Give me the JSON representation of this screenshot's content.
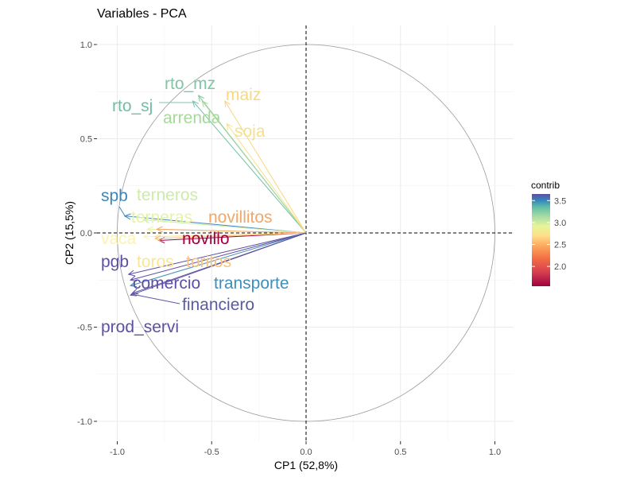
{
  "chart_data": {
    "type": "scatter",
    "subtype": "pca-variable-correlation-circle",
    "title": "Variables - PCA",
    "xlabel": "CP1 (52,8%)",
    "ylabel": "CP2 (15,5%)",
    "xlim": [
      -1.1,
      1.1
    ],
    "ylim": [
      -1.1,
      1.1
    ],
    "x_ticks": [
      -1.0,
      -0.5,
      0.0,
      0.5,
      1.0
    ],
    "x_tick_labels": [
      "-1.0",
      "-0.5",
      "0.0",
      "0.5",
      "1.0"
    ],
    "y_ticks": [
      -1.0,
      -0.5,
      0.0,
      0.5,
      1.0
    ],
    "y_tick_labels": [
      "-1.0",
      "-0.5",
      "0.0",
      "0.5",
      "1.0"
    ],
    "grid": true,
    "unit_circle": true,
    "reference_lines": "dashed at x=0 and y=0",
    "legend": {
      "title": "contrib",
      "placement": "right",
      "min": 1.55,
      "max": 3.65,
      "ticks": [
        2.0,
        2.5,
        3.0,
        3.5
      ],
      "tick_labels": [
        "2.0",
        "2.5",
        "3.0",
        "3.5"
      ],
      "colormap": "Spectral"
    },
    "variables": [
      {
        "name": "rto_mz",
        "x": -0.57,
        "y": 0.73,
        "contrib": 2.95,
        "color": "#7fc6a4"
      },
      {
        "name": "rto_sj",
        "x": -0.6,
        "y": 0.7,
        "contrib": 3.05,
        "color": "#6fbfa6"
      },
      {
        "name": "maiz",
        "x": -0.43,
        "y": 0.7,
        "contrib": 2.2,
        "color": "#f8d77f"
      },
      {
        "name": "arrenda",
        "x": -0.55,
        "y": 0.7,
        "contrib": 2.75,
        "color": "#a6d99b"
      },
      {
        "name": "soja",
        "x": -0.42,
        "y": 0.58,
        "contrib": 2.25,
        "color": "#f7e08a"
      },
      {
        "name": "spb",
        "x": -0.96,
        "y": 0.09,
        "contrib": 3.35,
        "color": "#3d87b8"
      },
      {
        "name": "terneros",
        "x": -0.86,
        "y": 0.07,
        "contrib": 2.65,
        "color": "#cdebaa"
      },
      {
        "name": "terneras",
        "x": -0.84,
        "y": 0.02,
        "contrib": 2.55,
        "color": "#e5f4a1"
      },
      {
        "name": "novillitos",
        "x": -0.79,
        "y": 0.02,
        "contrib": 1.95,
        "color": "#f2a766"
      },
      {
        "name": "vaca",
        "x": -0.86,
        "y": -0.02,
        "contrib": 2.4,
        "color": "#fbf3b1"
      },
      {
        "name": "novillo",
        "x": -0.78,
        "y": -0.04,
        "contrib": 1.6,
        "color": "#9e0142"
      },
      {
        "name": "pgb",
        "x": -0.94,
        "y": -0.22,
        "contrib": 3.6,
        "color": "#5e4fa2"
      },
      {
        "name": "toros",
        "x": -0.8,
        "y": -0.02,
        "contrib": 2.3,
        "color": "#fbe593"
      },
      {
        "name": "toritos",
        "x": -0.8,
        "y": -0.03,
        "contrib": 2.1,
        "color": "#f7c47d"
      },
      {
        "name": "comercio",
        "x": -0.93,
        "y": -0.25,
        "contrib": 3.58,
        "color": "#5e4fa2"
      },
      {
        "name": "transporte",
        "x": -0.93,
        "y": -0.28,
        "contrib": 3.3,
        "color": "#3f8fba"
      },
      {
        "name": "financiero",
        "x": -0.92,
        "y": -0.32,
        "contrib": 3.55,
        "color": "#5a5aa6"
      },
      {
        "name": "prod_servi",
        "x": -0.93,
        "y": -0.33,
        "contrib": 3.62,
        "color": "#5e4fa2"
      }
    ]
  }
}
